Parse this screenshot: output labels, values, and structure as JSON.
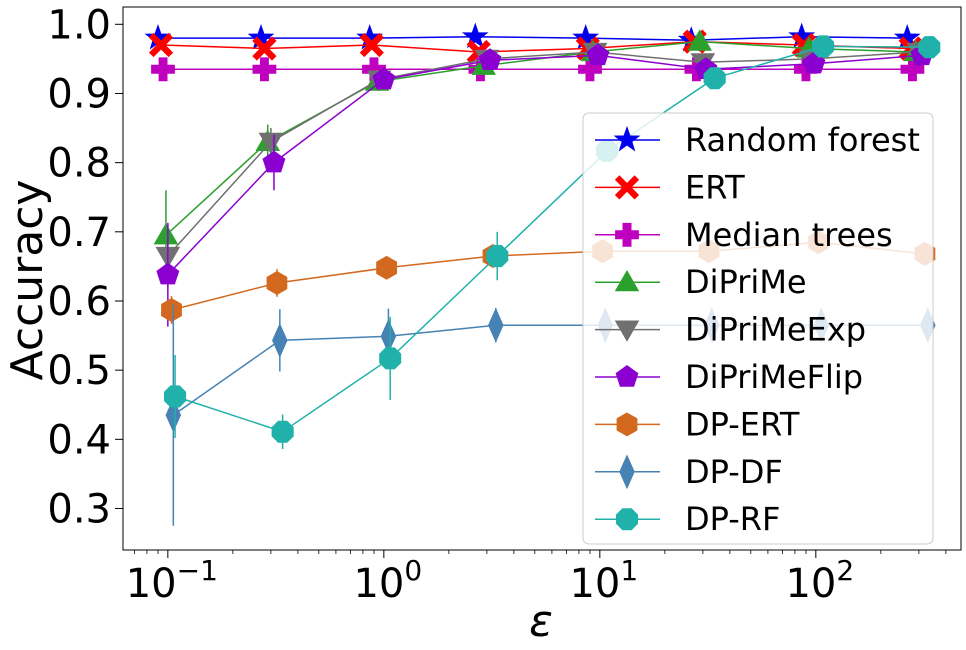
{
  "chart_data": {
    "type": "line",
    "title": "",
    "xlabel": "ε",
    "ylabel": "Accuracy",
    "xscale": "log",
    "xlim": [
      0.062,
      470
    ],
    "ylim": [
      0.24,
      1.025
    ],
    "x_ticks": [
      {
        "value": 0.1,
        "base": "10",
        "exp": "−1"
      },
      {
        "value": 1,
        "base": "10",
        "exp": "0"
      },
      {
        "value": 10,
        "base": "10",
        "exp": "1"
      },
      {
        "value": 100,
        "base": "10",
        "exp": "2"
      }
    ],
    "y_ticks": [
      {
        "value": 0.3,
        "label": "0.3"
      },
      {
        "value": 0.4,
        "label": "0.4"
      },
      {
        "value": 0.5,
        "label": "0.5"
      },
      {
        "value": 0.6,
        "label": "0.6"
      },
      {
        "value": 0.7,
        "label": "0.7"
      },
      {
        "value": 0.8,
        "label": "0.8"
      },
      {
        "value": 0.9,
        "label": "0.9"
      },
      {
        "value": 1.0,
        "label": "1.0"
      }
    ],
    "grid": false,
    "legend_position": "right",
    "series": [
      {
        "name": "Random forest",
        "color": "#0000ee",
        "marker": "star",
        "x": [
          0.09,
          0.27,
          0.86,
          2.65,
          8.6,
          26.5,
          86,
          265
        ],
        "y": [
          0.98,
          0.98,
          0.98,
          0.982,
          0.98,
          0.977,
          0.982,
          0.98
        ],
        "err": [
          0,
          0,
          0,
          0,
          0,
          0,
          0,
          0
        ]
      },
      {
        "name": "ERT",
        "color": "#ff0000",
        "marker": "x",
        "x": [
          0.093,
          0.28,
          0.88,
          2.75,
          8.8,
          27.5,
          88,
          275
        ],
        "y": [
          0.97,
          0.965,
          0.97,
          0.96,
          0.965,
          0.975,
          0.97,
          0.965
        ],
        "err": [
          0,
          0,
          0,
          0,
          0,
          0,
          0,
          0
        ]
      },
      {
        "name": "Median trees",
        "color": "#bf00bf",
        "marker": "plus",
        "x": [
          0.095,
          0.28,
          0.9,
          2.8,
          9.0,
          28,
          90,
          280
        ],
        "y": [
          0.935,
          0.935,
          0.935,
          0.935,
          0.935,
          0.935,
          0.935,
          0.935
        ],
        "err": [
          0,
          0,
          0,
          0,
          0,
          0,
          0,
          0
        ]
      },
      {
        "name": "DiPriMe",
        "color": "#2ca02c",
        "marker": "triangle-up",
        "x": [
          0.098,
          0.29,
          0.93,
          2.9,
          9.3,
          29,
          93,
          290
        ],
        "y": [
          0.695,
          0.83,
          0.917,
          0.94,
          0.96,
          0.975,
          0.965,
          0.96
        ],
        "err": [
          0.065,
          0.025,
          0.01,
          0.005,
          0.005,
          0.005,
          0.005,
          0.005
        ]
      },
      {
        "name": "DiPriMeExp",
        "color": "#707070",
        "marker": "triangle-down",
        "x": [
          0.1,
          0.3,
          0.95,
          3.0,
          9.5,
          30,
          95,
          300
        ],
        "y": [
          0.665,
          0.83,
          0.92,
          0.95,
          0.96,
          0.945,
          0.95,
          0.96
        ],
        "err": [
          0.045,
          0.02,
          0.01,
          0.005,
          0.005,
          0.005,
          0.005,
          0.005
        ]
      },
      {
        "name": "DiPriMeFlip",
        "color": "#8b00d0",
        "marker": "pentagon",
        "x": [
          0.1,
          0.31,
          1.0,
          3.1,
          9.8,
          31,
          98,
          310
        ],
        "y": [
          0.638,
          0.8,
          0.92,
          0.948,
          0.955,
          0.935,
          0.943,
          0.955
        ],
        "err": [
          0.075,
          0.04,
          0.01,
          0.005,
          0.005,
          0.005,
          0.005,
          0.005
        ]
      },
      {
        "name": "DP-ERT",
        "color": "#d2691e",
        "marker": "hexagon",
        "x": [
          0.104,
          0.32,
          1.03,
          3.2,
          10.3,
          32,
          103,
          320
        ],
        "y": [
          0.587,
          0.626,
          0.648,
          0.665,
          0.672,
          0.672,
          0.685,
          0.668
        ],
        "err": [
          0.02,
          0.02,
          0.015,
          0.01,
          0.01,
          0.01,
          0.01,
          0.01
        ]
      },
      {
        "name": "DP-DF",
        "color": "#4682b4",
        "marker": "thin-diamond",
        "x": [
          0.106,
          0.33,
          1.05,
          3.3,
          10.6,
          33,
          106,
          330
        ],
        "y": [
          0.435,
          0.543,
          0.549,
          0.565,
          0.565,
          0.565,
          0.565,
          0.565
        ],
        "err": [
          0.16,
          0.045,
          0.04,
          0.025,
          0.025,
          0.025,
          0.025,
          0.025
        ]
      },
      {
        "name": "DP-RF",
        "color": "#20b2aa",
        "marker": "octagon",
        "x": [
          0.108,
          0.34,
          1.07,
          3.35,
          10.8,
          34,
          108,
          335
        ],
        "y": [
          0.462,
          0.411,
          0.517,
          0.665,
          0.817,
          0.922,
          0.968,
          0.967
        ],
        "err": [
          0.06,
          0.025,
          0.06,
          0.035,
          0.015,
          0.01,
          0.005,
          0.005
        ]
      }
    ]
  }
}
